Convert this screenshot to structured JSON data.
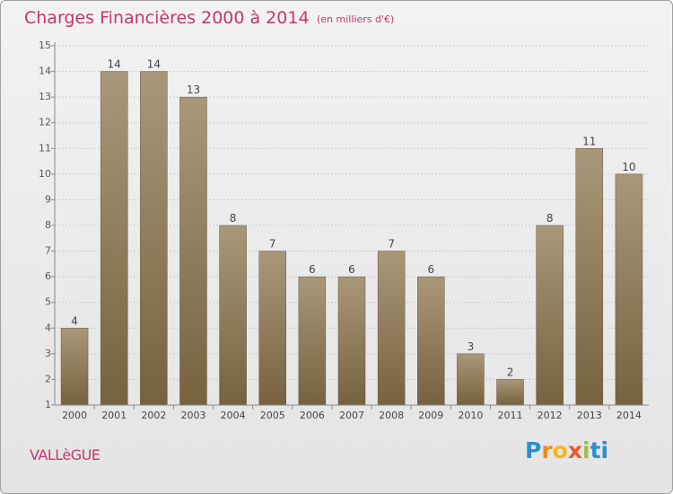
{
  "header": {
    "title": "Charges Financières 2000 à 2014",
    "subtitle": "(en milliers d'€)"
  },
  "footer": {
    "commune": "VALLèGUE",
    "logo": [
      "P",
      "r",
      "o",
      "x",
      "i",
      "t",
      "i"
    ]
  },
  "colors": {
    "accent": "#c8356f",
    "bar_top": "#a8987a",
    "bar_bottom": "#76623f",
    "gridline": "#c8c8c8"
  },
  "chart_data": {
    "type": "bar",
    "title": "Charges Financières 2000 à 2014",
    "subtitle": "(en milliers d'€)",
    "categories": [
      "2000",
      "2001",
      "2002",
      "2003",
      "2004",
      "2005",
      "2006",
      "2007",
      "2008",
      "2009",
      "2010",
      "2011",
      "2012",
      "2013",
      "2014"
    ],
    "values": [
      4,
      14,
      14,
      13,
      8,
      7,
      6,
      6,
      7,
      6,
      3,
      2,
      8,
      11,
      10
    ],
    "ylim": [
      1,
      15
    ],
    "yticks": [
      1,
      2,
      3,
      4,
      5,
      6,
      7,
      8,
      9,
      10,
      11,
      12,
      13,
      14,
      15
    ],
    "grid": true,
    "xlabel": "",
    "ylabel": ""
  }
}
